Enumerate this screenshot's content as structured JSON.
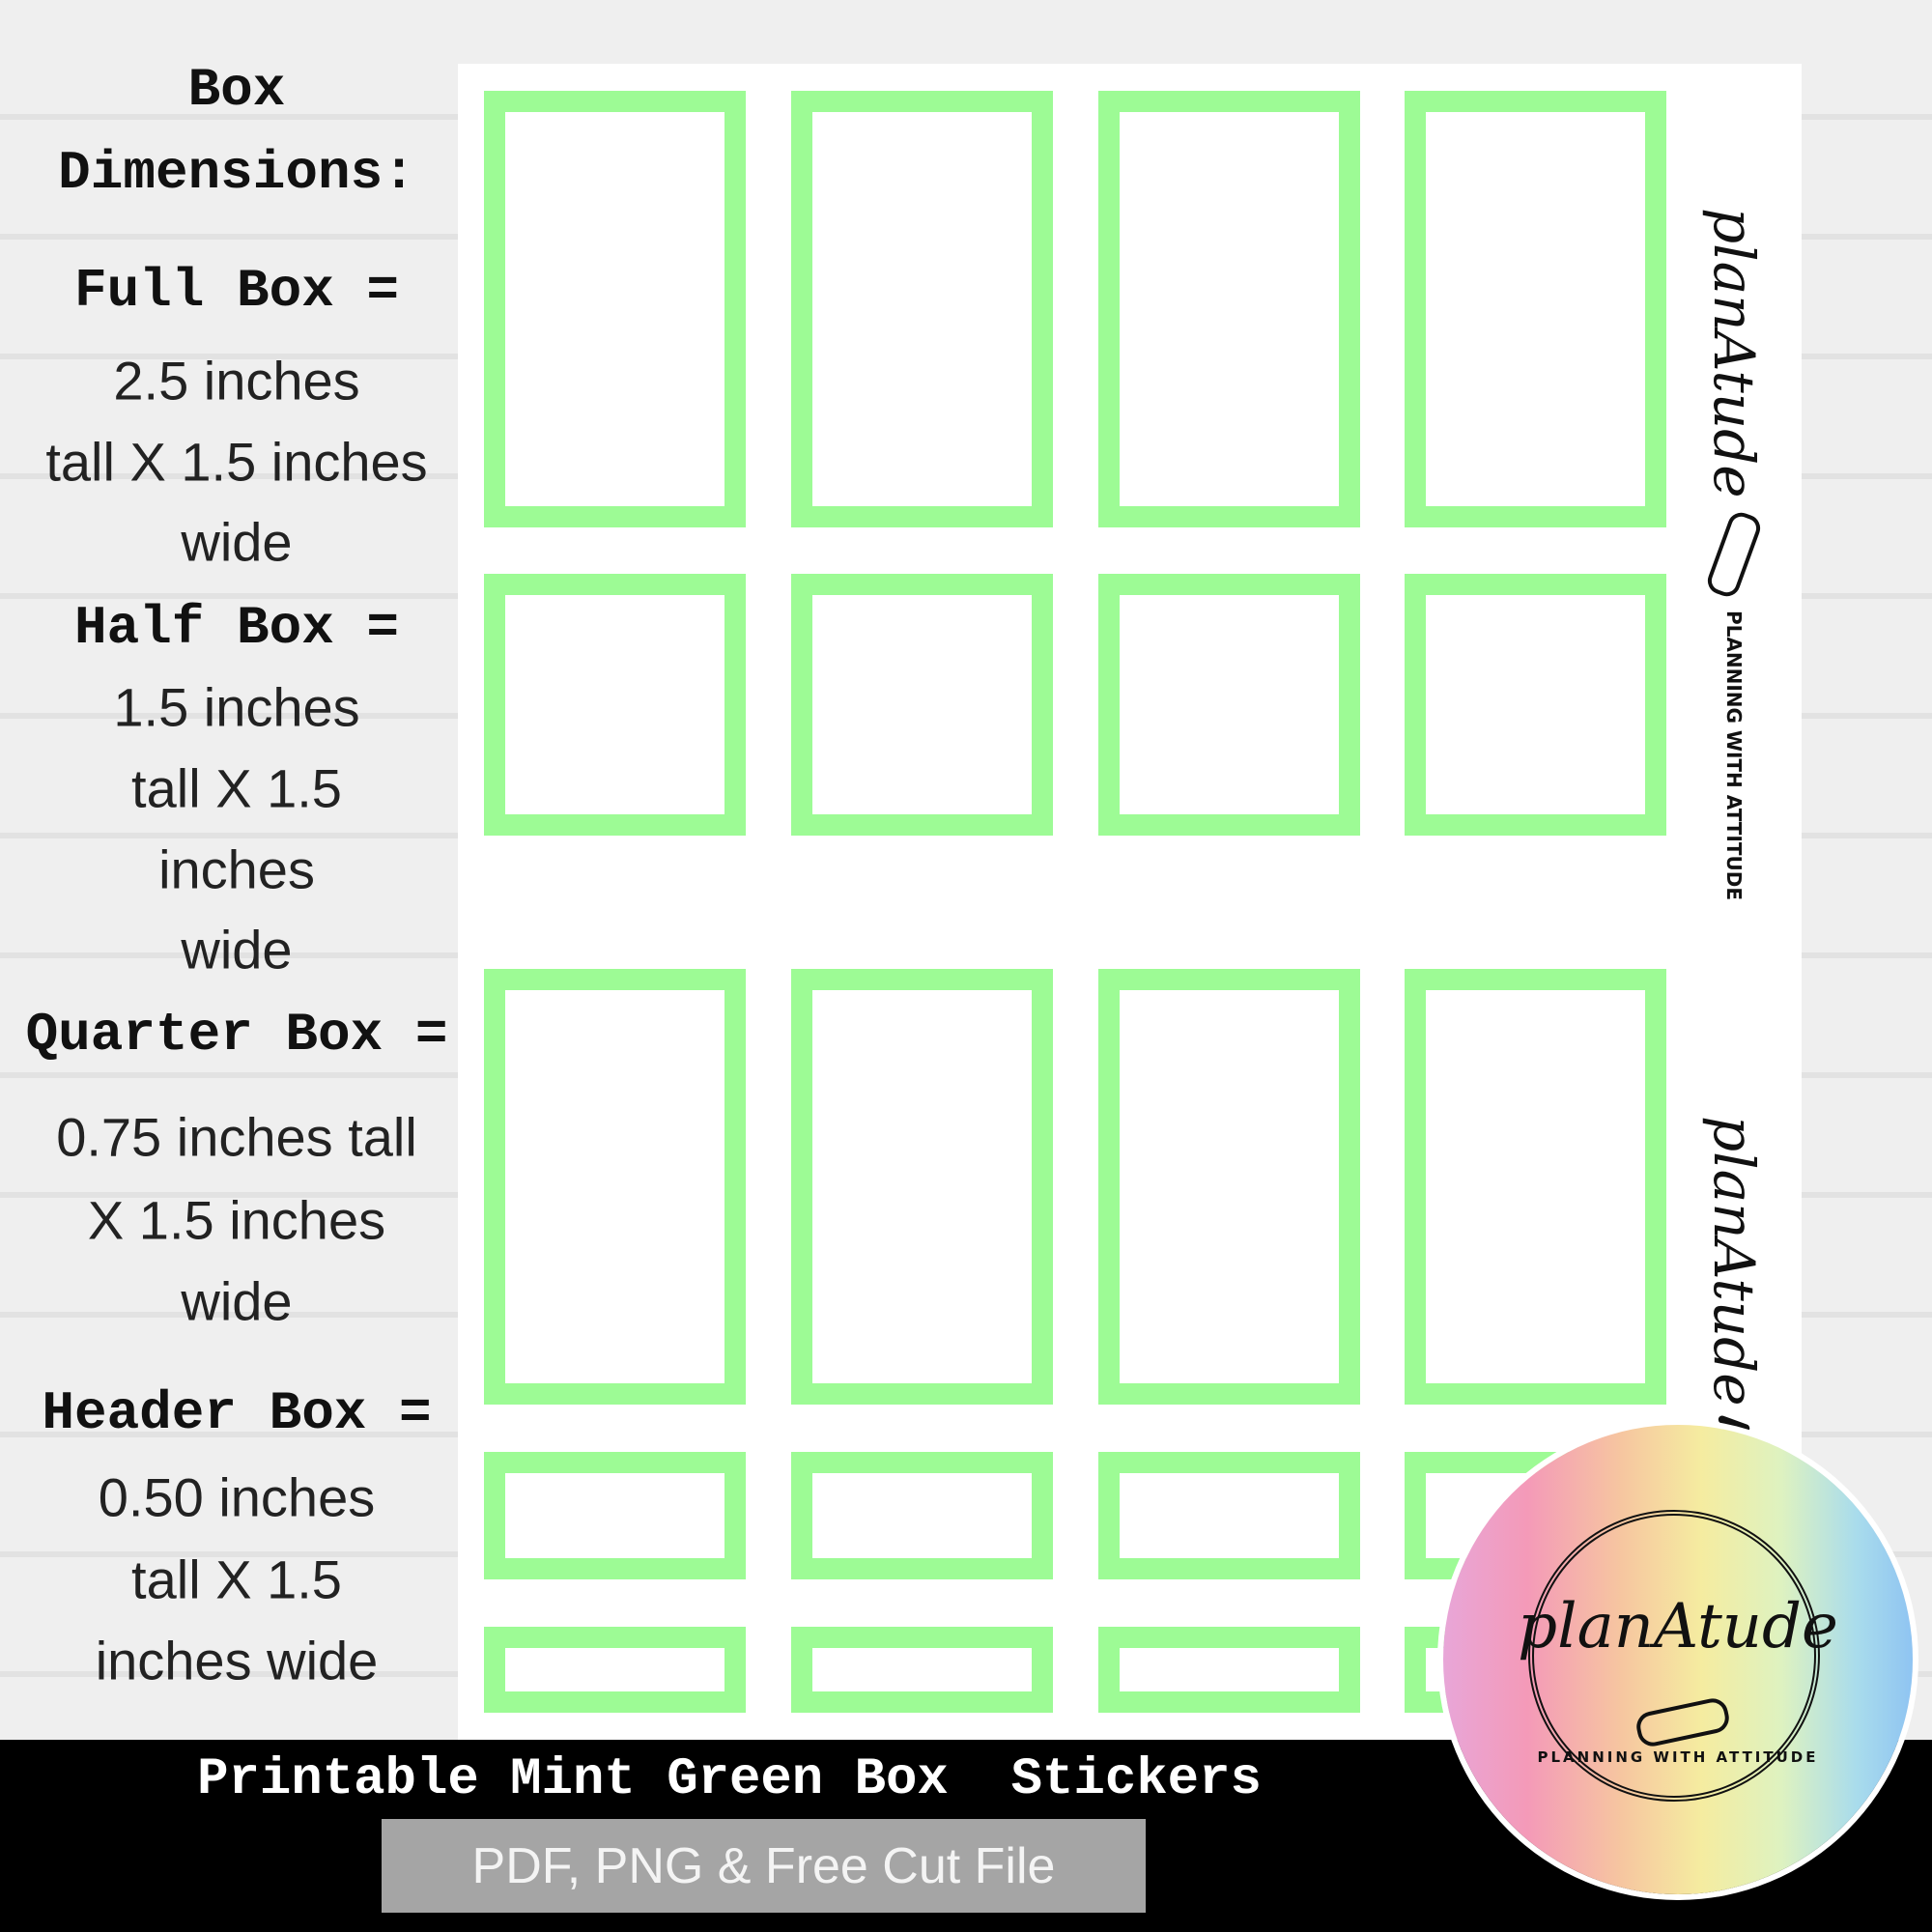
{
  "dimensions": {
    "lines": [
      {
        "text": "Box",
        "style": "mono"
      },
      {
        "text": "Dimensions:",
        "style": "mono"
      },
      {
        "text": "Full Box =",
        "style": "mono"
      },
      {
        "text": "2.5 inches",
        "style": "sans"
      },
      {
        "text": "tall X 1.5 inches",
        "style": "sans"
      },
      {
        "text": "wide",
        "style": "sans"
      },
      {
        "text": "Half Box =",
        "style": "mono"
      },
      {
        "text": "1.5 inches",
        "style": "sans"
      },
      {
        "text": "tall X 1.5",
        "style": "sans"
      },
      {
        "text": "inches",
        "style": "sans"
      },
      {
        "text": "wide",
        "style": "sans"
      },
      {
        "text": "Quarter Box =",
        "style": "mono"
      },
      {
        "text": "0.75 inches tall",
        "style": "sans"
      },
      {
        "text": "X 1.5 inches",
        "style": "sans"
      },
      {
        "text": "wide",
        "style": "sans"
      },
      {
        "text": "Header Box =",
        "style": "mono"
      },
      {
        "text": "0.50 inches",
        "style": "sans"
      },
      {
        "text": "tall X 1.5",
        "style": "sans"
      },
      {
        "text": "inches wide",
        "style": "sans"
      }
    ]
  },
  "sheet": {
    "box_color": "#9dfb95",
    "rows": [
      "full",
      "half",
      "full",
      "quarter",
      "header"
    ],
    "columns": 4,
    "side_logo": {
      "script": "planAtude",
      "tagline": "PLANNING WITH ATTITUDE"
    }
  },
  "banner": {
    "title": "Printable Mint Green Box  Stickers",
    "subtitle": "PDF, PNG & Free Cut File"
  },
  "logo": {
    "script": "planAtude",
    "tagline": "PLANNING WITH ATTITUDE",
    "icon": "paperclip-icon"
  }
}
